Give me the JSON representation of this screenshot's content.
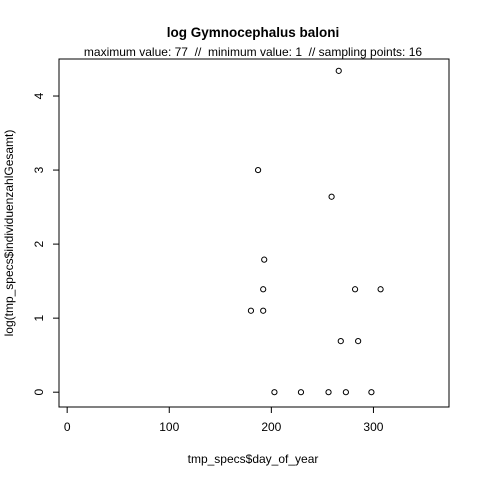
{
  "chart_data": {
    "type": "scatter",
    "title": "log Gymnocephalus baloni",
    "subtitle": "maximum value: 77  //  minimum value: 1  // sampling points: 16",
    "xlabel": "tmp_specs$day_of_year",
    "ylabel": "log(tmp_specs$individuenzahlGesamt)",
    "xlim": [
      -8,
      374
    ],
    "ylim": [
      -0.2,
      4.5
    ],
    "xticks": [
      0,
      100,
      200,
      300
    ],
    "yticks": [
      0,
      1,
      2,
      3,
      4
    ],
    "grid": false,
    "marker": "open-circle",
    "points": [
      {
        "x": 180,
        "y": 1.1
      },
      {
        "x": 187,
        "y": 3.0
      },
      {
        "x": 192,
        "y": 1.1
      },
      {
        "x": 192,
        "y": 1.39
      },
      {
        "x": 193,
        "y": 1.79
      },
      {
        "x": 203,
        "y": 0
      },
      {
        "x": 229,
        "y": 0
      },
      {
        "x": 256,
        "y": 0
      },
      {
        "x": 259,
        "y": 2.64
      },
      {
        "x": 266,
        "y": 4.34
      },
      {
        "x": 268,
        "y": 0.69
      },
      {
        "x": 273,
        "y": 0
      },
      {
        "x": 282,
        "y": 1.39
      },
      {
        "x": 285,
        "y": 0.69
      },
      {
        "x": 298,
        "y": 0
      },
      {
        "x": 307,
        "y": 1.39
      }
    ]
  }
}
